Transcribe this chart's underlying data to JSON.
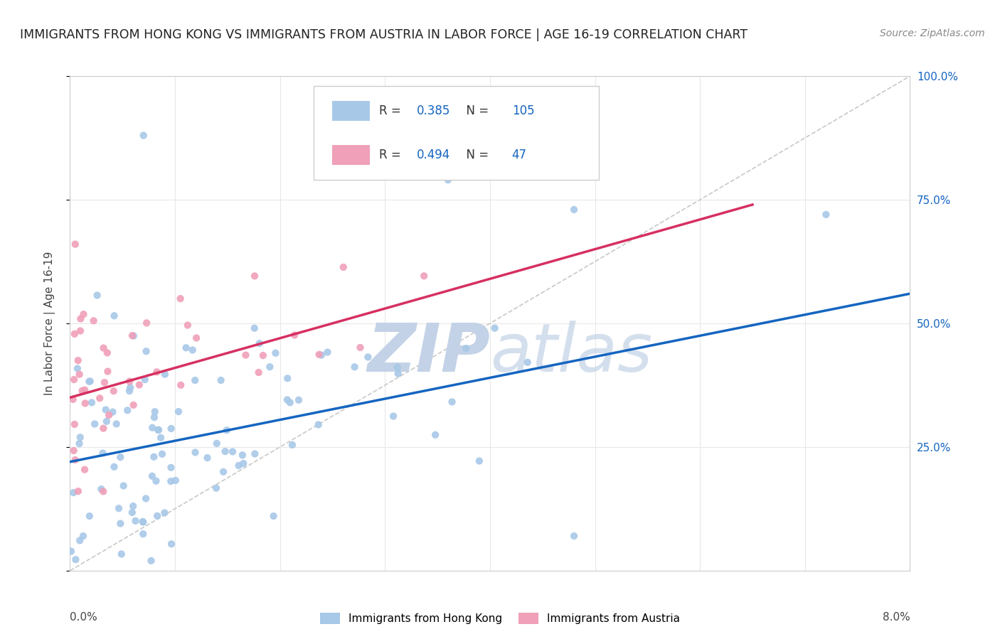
{
  "title": "IMMIGRANTS FROM HONG KONG VS IMMIGRANTS FROM AUSTRIA IN LABOR FORCE | AGE 16-19 CORRELATION CHART",
  "source": "Source: ZipAtlas.com",
  "ylabel": "In Labor Force | Age 16-19",
  "legend_hk": "Immigrants from Hong Kong",
  "legend_at": "Immigrants from Austria",
  "r_hk": 0.385,
  "n_hk": 105,
  "r_at": 0.494,
  "n_at": 47,
  "color_hk": "#a8c8e8",
  "color_at": "#f0a0b8",
  "line_color_hk": "#1565c0",
  "line_color_at": "#d63060",
  "ref_line_color": "#c8c8c8",
  "watermark": "ZIPatlas",
  "watermark_color_r": 195,
  "watermark_color_g": 210,
  "watermark_color_b": 230,
  "bg_color": "#ffffff",
  "grid_color": "#e8e8e8",
  "xlim": [
    0.0,
    0.08
  ],
  "ylim": [
    0.0,
    1.0
  ],
  "hk_trend_x0": 0.0,
  "hk_trend_y0": 0.22,
  "hk_trend_x1": 0.08,
  "hk_trend_y1": 0.56,
  "at_trend_x0": 0.0,
  "at_trend_y0": 0.35,
  "at_trend_x1": 0.065,
  "at_trend_y1": 0.74,
  "right_yticks": [
    1.0,
    0.75,
    0.5,
    0.25
  ],
  "right_yticklabels": [
    "100.0%",
    "75.0%",
    "50.0%",
    "25.0%"
  ]
}
